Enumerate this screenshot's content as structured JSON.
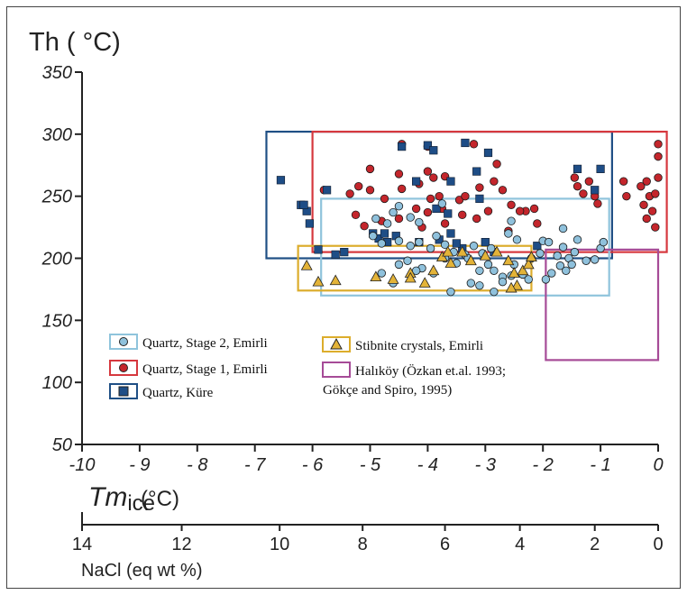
{
  "chart_data": {
    "type": "scatter",
    "title": "",
    "ylabel": "Th ( °C)",
    "ylim": [
      50,
      350
    ],
    "yticks": [
      50,
      100,
      150,
      200,
      250,
      300,
      350
    ],
    "yticklabels": [
      "50",
      "100",
      "150",
      "200",
      "250",
      "300",
      "350"
    ],
    "xlabel_main": "Tm",
    "xlabel_sub": "ice",
    "xlabel_unit": "(°C)",
    "xlim": [
      -10,
      0
    ],
    "xticks": [
      -10,
      -9,
      -8,
      -7,
      -6,
      -5,
      -4,
      -3,
      -2,
      -1,
      0
    ],
    "xticklabels": [
      "-10",
      "- 9",
      "- 8",
      "- 7",
      "- 6",
      "- 5",
      "- 4",
      "- 3",
      "- 2",
      "- 1",
      "0"
    ],
    "salinity_axis": {
      "label": "NaCl (eq wt %)",
      "ticks": [
        {
          "tm": -10,
          "label": "14"
        },
        {
          "tm": -8.27,
          "label": "12"
        },
        {
          "tm": -6.57,
          "label": "10"
        },
        {
          "tm": -5.13,
          "label": "8"
        },
        {
          "tm": -3.7,
          "label": "6"
        },
        {
          "tm": -2.4,
          "label": "4"
        },
        {
          "tm": -1.1,
          "label": "2"
        },
        {
          "tm": 0,
          "label": "0"
        }
      ]
    },
    "series": [
      {
        "name": "Quartz, Stage 2, Emirli",
        "marker": "circle",
        "color": "#8fc1dc",
        "box_color": "#8fc4dc",
        "box": [
          -5.85,
          170,
          -0.85,
          248
        ],
        "points": [
          [
            -4.9,
            232
          ],
          [
            -4.7,
            228
          ],
          [
            -4.6,
            237
          ],
          [
            -4.5,
            242
          ],
          [
            -4.3,
            233
          ],
          [
            -4.15,
            229
          ],
          [
            -3.75,
            244
          ],
          [
            -4.95,
            218
          ],
          [
            -4.8,
            212
          ],
          [
            -4.5,
            214
          ],
          [
            -4.3,
            210
          ],
          [
            -4.15,
            213
          ],
          [
            -3.95,
            208
          ],
          [
            -3.85,
            218
          ],
          [
            -3.7,
            211
          ],
          [
            -3.55,
            205
          ],
          [
            -3.35,
            203
          ],
          [
            -3.2,
            210
          ],
          [
            -3.05,
            204
          ],
          [
            -2.9,
            208
          ],
          [
            -2.6,
            220
          ],
          [
            -2.55,
            230
          ],
          [
            -2.45,
            215
          ],
          [
            -4.5,
            195
          ],
          [
            -4.35,
            198
          ],
          [
            -4.1,
            192
          ],
          [
            -3.9,
            188
          ],
          [
            -3.7,
            200
          ],
          [
            -3.5,
            196
          ],
          [
            -3.3,
            200
          ],
          [
            -3.1,
            190
          ],
          [
            -2.95,
            195
          ],
          [
            -2.85,
            190
          ],
          [
            -2.7,
            185
          ],
          [
            -2.5,
            195
          ],
          [
            -2.35,
            187
          ],
          [
            -2.2,
            200
          ],
          [
            -2.05,
            204
          ],
          [
            -2.0,
            214
          ],
          [
            -1.9,
            213
          ],
          [
            -1.75,
            202
          ],
          [
            -1.65,
            209
          ],
          [
            -1.55,
            200
          ],
          [
            -1.45,
            205
          ],
          [
            -1.4,
            215
          ],
          [
            -1.25,
            198
          ],
          [
            -1.1,
            199
          ],
          [
            -1.0,
            208
          ],
          [
            -0.95,
            213
          ],
          [
            -1.65,
            224
          ],
          [
            -4.8,
            188
          ],
          [
            -4.6,
            180
          ],
          [
            -4.2,
            190
          ],
          [
            -3.6,
            173
          ],
          [
            -3.25,
            180
          ],
          [
            -3.1,
            178
          ],
          [
            -2.85,
            173
          ],
          [
            -2.7,
            181
          ],
          [
            -2.55,
            186
          ],
          [
            -2.25,
            183
          ],
          [
            -1.95,
            183
          ],
          [
            -1.85,
            188
          ],
          [
            -1.7,
            194
          ],
          [
            -1.6,
            190
          ],
          [
            -1.5,
            195
          ]
        ]
      },
      {
        "name": "Quartz, Stage 1, Emirli",
        "marker": "circle",
        "color": "#c4262c",
        "box_color": "#d6383e",
        "box": [
          -6.0,
          205,
          0.15,
          302
        ],
        "points": [
          [
            -4.45,
            292
          ],
          [
            -4.0,
            290
          ],
          [
            -3.2,
            292
          ],
          [
            -2.8,
            276
          ],
          [
            -5.0,
            272
          ],
          [
            -4.5,
            268
          ],
          [
            -4.0,
            270
          ],
          [
            -3.9,
            265
          ],
          [
            -3.7,
            266
          ],
          [
            -5.2,
            258
          ],
          [
            -5.35,
            252
          ],
          [
            -5.0,
            255
          ],
          [
            -4.75,
            248
          ],
          [
            -4.45,
            256
          ],
          [
            -4.15,
            260
          ],
          [
            -3.95,
            248
          ],
          [
            -3.8,
            250
          ],
          [
            -3.75,
            240
          ],
          [
            -3.45,
            247
          ],
          [
            -3.35,
            250
          ],
          [
            -3.1,
            257
          ],
          [
            -2.85,
            262
          ],
          [
            -2.7,
            255
          ],
          [
            -2.55,
            243
          ],
          [
            -2.3,
            238
          ],
          [
            -2.15,
            240
          ],
          [
            -2.1,
            228
          ],
          [
            -5.25,
            235
          ],
          [
            -5.1,
            226
          ],
          [
            -4.8,
            230
          ],
          [
            -4.5,
            232
          ],
          [
            -4.2,
            240
          ],
          [
            -4.0,
            237
          ],
          [
            -3.7,
            228
          ],
          [
            -3.4,
            235
          ],
          [
            -3.15,
            232
          ],
          [
            -2.95,
            238
          ],
          [
            -2.6,
            222
          ],
          [
            -2.4,
            238
          ],
          [
            -4.1,
            225
          ],
          [
            -5.8,
            255
          ],
          [
            -1.45,
            265
          ],
          [
            -1.4,
            258
          ],
          [
            -1.3,
            252
          ],
          [
            -1.2,
            262
          ],
          [
            -1.1,
            250
          ],
          [
            -1.05,
            244
          ],
          [
            -0.6,
            262
          ],
          [
            -0.55,
            250
          ],
          [
            -0.3,
            258
          ],
          [
            -0.25,
            243
          ],
          [
            -0.2,
            262
          ],
          [
            -0.15,
            250
          ],
          [
            -0.1,
            238
          ],
          [
            -0.05,
            225
          ],
          [
            0.0,
            265
          ],
          [
            0.0,
            292
          ],
          [
            0.0,
            282
          ],
          [
            -0.05,
            252
          ],
          [
            -0.2,
            232
          ]
        ]
      },
      {
        "name": "Quartz, Küre",
        "marker": "square",
        "color": "#1e4d86",
        "box_color": "#1f4f85",
        "box": [
          -6.8,
          200,
          -0.8,
          302
        ],
        "points": [
          [
            -6.55,
            263
          ],
          [
            -6.2,
            243
          ],
          [
            -6.1,
            238
          ],
          [
            -6.05,
            228
          ],
          [
            -6.15,
            243
          ],
          [
            -5.75,
            255
          ],
          [
            -5.9,
            207
          ],
          [
            -5.6,
            203
          ],
          [
            -4.95,
            220
          ],
          [
            -4.85,
            216
          ],
          [
            -4.75,
            220
          ],
          [
            -4.7,
            213
          ],
          [
            -4.55,
            218
          ],
          [
            -4.45,
            290
          ],
          [
            -4.0,
            291
          ],
          [
            -3.9,
            287
          ],
          [
            -3.35,
            293
          ],
          [
            -3.15,
            270
          ],
          [
            -2.95,
            285
          ],
          [
            -3.1,
            248
          ],
          [
            -3.6,
            262
          ],
          [
            -4.2,
            262
          ],
          [
            -3.85,
            240
          ],
          [
            -3.65,
            236
          ],
          [
            -3.4,
            208
          ],
          [
            -3.6,
            220
          ],
          [
            -3.0,
            213
          ],
          [
            -2.85,
            205
          ],
          [
            -2.1,
            210
          ],
          [
            -1.4,
            272
          ],
          [
            -1.0,
            272
          ],
          [
            -1.1,
            255
          ],
          [
            -5.45,
            205
          ],
          [
            -4.15,
            213
          ],
          [
            -3.8,
            215
          ],
          [
            -3.5,
            212
          ]
        ]
      },
      {
        "name": "Stibnite crystals, Emirli",
        "marker": "triangle",
        "color": "#e3b338",
        "box_color": "#dcad2c",
        "box": [
          -6.25,
          174,
          -2.2,
          210
        ],
        "points": [
          [
            -6.1,
            194
          ],
          [
            -5.9,
            181
          ],
          [
            -5.6,
            182
          ],
          [
            -4.9,
            185
          ],
          [
            -4.6,
            183
          ],
          [
            -4.3,
            188
          ],
          [
            -4.05,
            180
          ],
          [
            -3.9,
            190
          ],
          [
            -3.75,
            201
          ],
          [
            -3.6,
            196
          ],
          [
            -3.4,
            205
          ],
          [
            -3.25,
            198
          ],
          [
            -3.0,
            202
          ],
          [
            -2.8,
            205
          ],
          [
            -2.6,
            198
          ],
          [
            -2.5,
            188
          ],
          [
            -2.45,
            178
          ],
          [
            -2.35,
            190
          ],
          [
            -2.25,
            195
          ],
          [
            -2.2,
            201
          ],
          [
            -2.55,
            176
          ],
          [
            -3.65,
            205
          ],
          [
            -4.3,
            184
          ]
        ]
      },
      {
        "name": "Halıköy (Özkan et.al. 1993;",
        "name_line2": "Gökçe and Spiro, 1995)",
        "marker": "none",
        "color": "#a64b97",
        "box_color": "#a64b97",
        "box": [
          -1.95,
          118,
          0.0,
          207
        ],
        "points": []
      }
    ]
  }
}
